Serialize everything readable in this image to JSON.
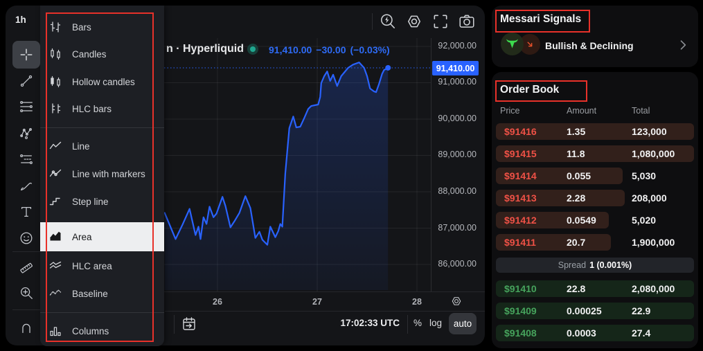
{
  "colors": {
    "accent_blue": "#2962ff",
    "ask_red": "#ef5146",
    "bid_green": "#46a35c",
    "annotation_red": "#e8312a",
    "ask_depth_bg": "#32201b",
    "bid_depth_bg": "#152619",
    "signal_bull_green": "#3ddc4e",
    "signal_decline_orange": "#e8502a",
    "status_dot_teal": "#20a890"
  },
  "chart_panel": {
    "timeframe": "1h",
    "sidebar_tools": [
      {
        "name": "crosshair",
        "icon": "crosshair",
        "selected": true
      },
      {
        "name": "trend-line",
        "icon": "trend-line",
        "selected": false
      },
      {
        "name": "fib-retracement",
        "icon": "fib-lines",
        "selected": false
      },
      {
        "name": "xabcd-pattern",
        "icon": "xabcd",
        "selected": false
      },
      {
        "name": "forecast",
        "icon": "forecast",
        "selected": false
      },
      {
        "name": "brush",
        "icon": "brush",
        "selected": false
      },
      {
        "name": "text-tool",
        "icon": "text",
        "selected": false
      },
      {
        "name": "emoji",
        "icon": "emoji",
        "selected": false
      },
      {
        "name": "ruler",
        "icon": "ruler",
        "selected": false
      },
      {
        "name": "zoom-in",
        "icon": "zoom-in",
        "selected": false
      },
      {
        "name": "magnet",
        "icon": "magnet",
        "selected": false
      }
    ],
    "top_toolbar_icons": [
      {
        "name": "flash-search-icon",
        "icon": "flash-search"
      },
      {
        "name": "settings-icon",
        "icon": "settings-hex"
      },
      {
        "name": "fullscreen-icon",
        "icon": "fullscreen"
      },
      {
        "name": "camera-icon",
        "icon": "camera"
      }
    ],
    "header": {
      "symbol": "n · Hyperliquid",
      "last_price": "91,410.00",
      "change": "−30.00",
      "change_pct": "(−0.03%)"
    },
    "chart_type_menu": {
      "items": [
        {
          "label": "Bars",
          "icon": "bars",
          "selected": false
        },
        {
          "label": "Candles",
          "icon": "candles",
          "selected": false
        },
        {
          "label": "Hollow candles",
          "icon": "hollow-candles",
          "selected": false
        },
        {
          "label": "HLC bars",
          "icon": "hlc-bars",
          "selected": false
        },
        {
          "label": "Line",
          "icon": "line",
          "selected": false
        },
        {
          "label": "Line with markers",
          "icon": "line-markers",
          "selected": false
        },
        {
          "label": "Step line",
          "icon": "step-line",
          "selected": false
        },
        {
          "label": "Area",
          "icon": "area",
          "selected": true
        },
        {
          "label": "HLC area",
          "icon": "hlc-area",
          "selected": false
        },
        {
          "label": "Baseline",
          "icon": "baseline",
          "selected": false
        },
        {
          "label": "Columns",
          "icon": "columns",
          "selected": false
        }
      ]
    },
    "price_axis": {
      "ticks": [
        "92,000.00",
        "91,000.00",
        "90,000.00",
        "89,000.00",
        "88,000.00",
        "87,000.00",
        "86,000.00"
      ],
      "current": "91,410.00"
    },
    "time_axis": {
      "ticks": [
        "26",
        "27",
        "28"
      ]
    },
    "bottom_bar": {
      "time": "17:02:33 UTC",
      "percent_label": "%",
      "log_label": "log",
      "auto_label": "auto"
    }
  },
  "chart_data": {
    "type": "area",
    "symbol_fragment": "n · Hyperliquid",
    "exchange": "Hyperliquid",
    "last_price": 91410,
    "change": -30,
    "change_pct": -0.03,
    "x_ticks_days": [
      26,
      27,
      28
    ],
    "y_ticks": [
      92000,
      91000,
      90000,
      89000,
      88000,
      87000,
      86000
    ],
    "ylim": [
      85200,
      92300
    ],
    "line_color": "#2962ff",
    "points": [
      [
        25.47,
        87420
      ],
      [
        25.58,
        86700
      ],
      [
        25.65,
        87100
      ],
      [
        25.72,
        87530
      ],
      [
        25.78,
        86810
      ],
      [
        25.81,
        87040
      ],
      [
        25.83,
        86700
      ],
      [
        25.86,
        87300
      ],
      [
        25.89,
        87115
      ],
      [
        25.92,
        87590
      ],
      [
        25.96,
        87300
      ],
      [
        25.99,
        87400
      ],
      [
        26.05,
        87860
      ],
      [
        26.08,
        87610
      ],
      [
        26.13,
        87020
      ],
      [
        26.17,
        87190
      ],
      [
        26.22,
        87420
      ],
      [
        26.28,
        87880
      ],
      [
        26.33,
        87550
      ],
      [
        26.38,
        86730
      ],
      [
        26.42,
        86900
      ],
      [
        26.45,
        86680
      ],
      [
        26.5,
        86540
      ],
      [
        26.53,
        87040
      ],
      [
        26.58,
        86750
      ],
      [
        26.61,
        86920
      ],
      [
        26.63,
        87115
      ],
      [
        26.65,
        87040
      ],
      [
        26.68,
        88500
      ],
      [
        26.72,
        89750
      ],
      [
        26.76,
        90070
      ],
      [
        26.79,
        89770
      ],
      [
        26.83,
        89790
      ],
      [
        26.87,
        90030
      ],
      [
        26.91,
        90280
      ],
      [
        26.94,
        90360
      ],
      [
        27.01,
        90400
      ],
      [
        27.03,
        90610
      ],
      [
        27.04,
        90990
      ],
      [
        27.07,
        91180
      ],
      [
        27.1,
        91310
      ],
      [
        27.13,
        91050
      ],
      [
        27.16,
        91220
      ],
      [
        27.2,
        90910
      ],
      [
        27.24,
        91180
      ],
      [
        27.31,
        91410
      ],
      [
        27.36,
        91500
      ],
      [
        27.42,
        91560
      ],
      [
        27.47,
        91410
      ],
      [
        27.5,
        91180
      ],
      [
        27.53,
        90840
      ],
      [
        27.57,
        90760
      ],
      [
        27.59,
        90740
      ],
      [
        27.62,
        90970
      ],
      [
        27.65,
        91240
      ],
      [
        27.67,
        91350
      ],
      [
        27.71,
        91410
      ]
    ]
  },
  "signals_panel": {
    "title": "Messari Signals",
    "signal": "Bullish & Declining"
  },
  "order_book": {
    "title": "Order Book",
    "columns": [
      "Price",
      "Amount",
      "Total"
    ],
    "asks": [
      {
        "price": "$91416",
        "amount": "1.35",
        "total": "123,000",
        "depth": 1
      },
      {
        "price": "$91415",
        "amount": "11.8",
        "total": "1,080,000",
        "depth": 1
      },
      {
        "price": "$91414",
        "amount": "0.055",
        "total": "5,030",
        "depth": 0.64
      },
      {
        "price": "$91413",
        "amount": "2.28",
        "total": "208,000",
        "depth": 0.65
      },
      {
        "price": "$91412",
        "amount": "0.0549",
        "total": "5,020",
        "depth": 0.57
      },
      {
        "price": "$91411",
        "amount": "20.7",
        "total": "1,900,000",
        "depth": 0.58
      }
    ],
    "spread": {
      "label": "Spread",
      "value": "1 (0.001%)"
    },
    "bids": [
      {
        "price": "$91410",
        "amount": "22.8",
        "total": "2,080,000",
        "depth": 1
      },
      {
        "price": "$91409",
        "amount": "0.00025",
        "total": "22.9",
        "depth": 1
      },
      {
        "price": "$91408",
        "amount": "0.0003",
        "total": "27.4",
        "depth": 1
      }
    ]
  }
}
